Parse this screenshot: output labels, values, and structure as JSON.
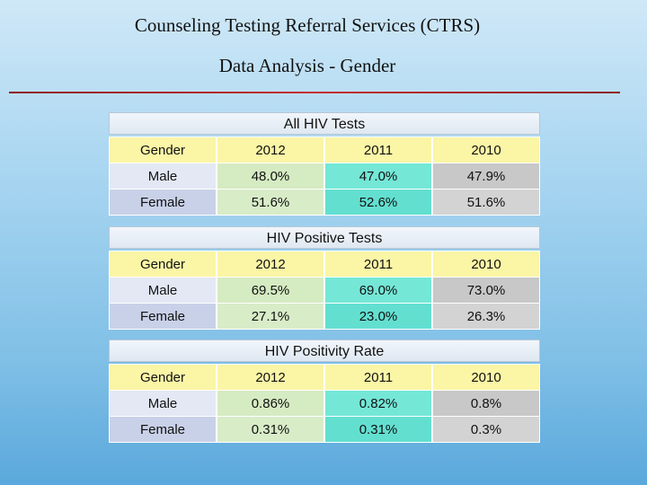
{
  "header": {
    "title": "Counseling Testing Referral Services (CTRS)",
    "subtitle": "Data Analysis - Gender"
  },
  "tables": [
    {
      "caption": "All HIV Tests",
      "columns": [
        "Gender",
        "2012",
        "2011",
        "2010"
      ],
      "rows": [
        [
          "Male",
          "48.0%",
          "47.0%",
          "47.9%"
        ],
        [
          "Female",
          "51.6%",
          "52.6%",
          "51.6%"
        ]
      ]
    },
    {
      "caption": "HIV Positive Tests",
      "columns": [
        "Gender",
        "2012",
        "2011",
        "2010"
      ],
      "rows": [
        [
          "Male",
          "69.5%",
          "69.0%",
          "73.0%"
        ],
        [
          "Female",
          "27.1%",
          "23.0%",
          "26.3%"
        ]
      ]
    },
    {
      "caption": "HIV Positivity Rate",
      "columns": [
        "Gender",
        "2012",
        "2011",
        "2010"
      ],
      "rows": [
        [
          "Male",
          "0.86%",
          "0.82%",
          "0.8%"
        ],
        [
          "Female",
          "0.31%",
          "0.31%",
          "0.3%"
        ]
      ]
    }
  ]
}
